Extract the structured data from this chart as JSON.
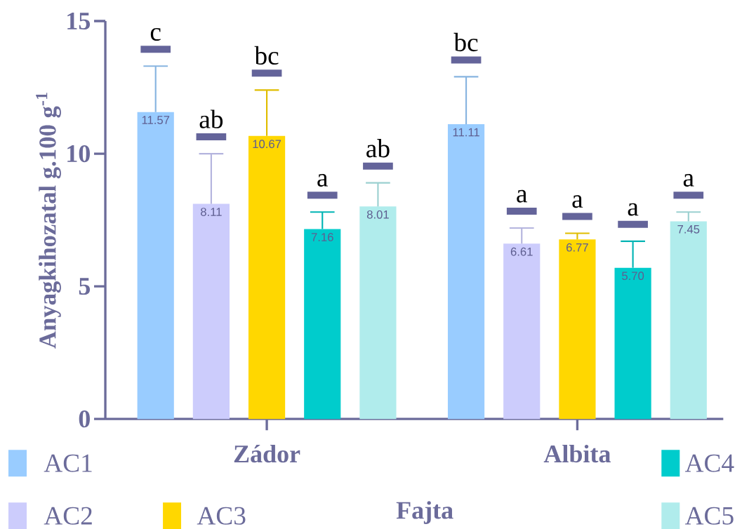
{
  "chart_data": {
    "type": "bar",
    "ylabel": "Anyagkihozatal g.100 g$^{-1}$",
    "xlabel": "Fajta",
    "categories": [
      "Zádor",
      "Albita"
    ],
    "series": [
      {
        "name": "AC1",
        "color": "#99ccff",
        "values": [
          11.57,
          11.11
        ],
        "value_labels": [
          "11.57",
          "11.11"
        ],
        "errors": [
          [
            11.57,
            13.3
          ],
          [
            11.11,
            12.9
          ]
        ]
      },
      {
        "name": "AC2",
        "color": "#ccccfc",
        "values": [
          8.11,
          6.61
        ],
        "value_labels": [
          "8.11",
          "6.61"
        ],
        "errors": [
          [
            8.11,
            10.0
          ],
          [
            6.61,
            7.2
          ]
        ]
      },
      {
        "name": "AC3",
        "color": "#ffd700",
        "values": [
          10.67,
          6.77
        ],
        "value_labels": [
          "10.67",
          "6.77"
        ],
        "errors": [
          [
            10.67,
            12.4
          ],
          [
            6.77,
            7.0
          ]
        ]
      },
      {
        "name": "AC4",
        "color": "#00cccc",
        "values": [
          7.16,
          5.7
        ],
        "value_labels": [
          "7.16",
          "5.70"
        ],
        "errors": [
          [
            7.16,
            7.8
          ],
          [
            5.7,
            6.7
          ]
        ]
      },
      {
        "name": "AC5",
        "color": "#b0ecec",
        "values": [
          8.01,
          7.45
        ],
        "value_labels": [
          "8.01",
          "7.45"
        ],
        "errors": [
          [
            8.01,
            8.9
          ],
          [
            7.45,
            7.8
          ]
        ]
      }
    ],
    "ylim": [
      0,
      15
    ],
    "yticks": [
      0,
      5,
      10,
      15
    ],
    "legend": "bottom",
    "annotations": [
      "c",
      "ab",
      "bc",
      "a",
      "ab",
      "bc",
      "a",
      "a",
      "a",
      "a"
    ]
  }
}
